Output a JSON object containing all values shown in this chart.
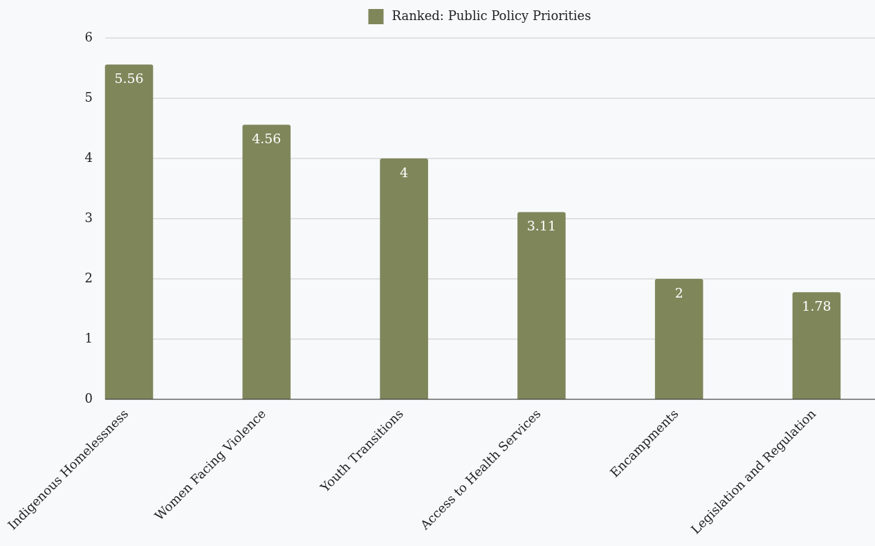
{
  "chart_data": {
    "type": "bar",
    "categories": [
      "Indigenous Homelessness",
      "Women Facing Violence",
      "Youth Transitions",
      "Access to Health Services",
      "Encampments",
      "Legislation and Regulation"
    ],
    "series": [
      {
        "name": "Ranked: Public Policy Priorities",
        "color": "#7f865a",
        "values": [
          5.56,
          4.56,
          4,
          3.11,
          2,
          1.78
        ]
      }
    ],
    "ylim": [
      0,
      6
    ],
    "yticks": [
      0,
      1,
      2,
      3,
      4,
      5,
      6
    ],
    "grid": "y",
    "legend": "top",
    "data_labels": true
  }
}
